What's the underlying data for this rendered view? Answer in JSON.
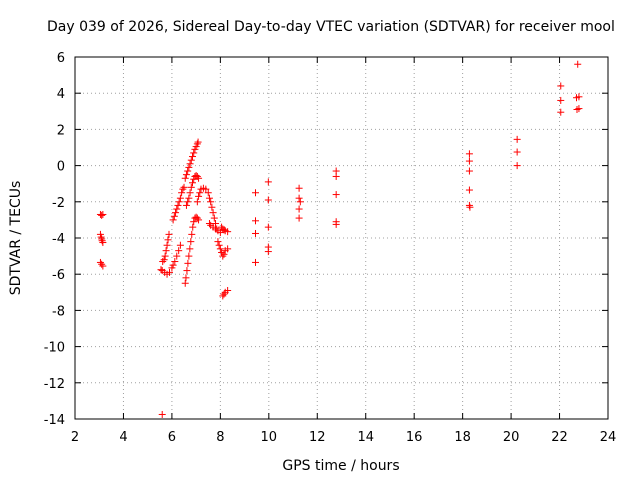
{
  "chart_data": {
    "type": "scatter",
    "title": "Day 039 of 2026, Sidereal Day-to-day VTEC variation (SDTVAR) for receiver mool",
    "xlabel": "GPS time / hours",
    "ylabel": "SDTVAR / TECUs",
    "xlim": [
      2,
      24
    ],
    "ylim": [
      -14,
      6
    ],
    "xticks": [
      2,
      4,
      6,
      8,
      10,
      12,
      14,
      16,
      18,
      20,
      22,
      24
    ],
    "yticks": [
      -14,
      -12,
      -10,
      -8,
      -6,
      -4,
      -2,
      0,
      2,
      4,
      6
    ],
    "grid": true,
    "marker": "+",
    "color": "#ff0000",
    "series": [
      {
        "name": "SDTVAR",
        "points": [
          [
            3.05,
            -2.7
          ],
          [
            3.1,
            -2.75
          ],
          [
            3.15,
            -2.7
          ],
          [
            3.05,
            -3.8
          ],
          [
            3.08,
            -3.95
          ],
          [
            3.1,
            -4.05
          ],
          [
            3.12,
            -4.15
          ],
          [
            3.15,
            -4.25
          ],
          [
            3.05,
            -5.35
          ],
          [
            3.1,
            -5.45
          ],
          [
            3.15,
            -5.55
          ],
          [
            5.6,
            -13.75
          ],
          [
            5.62,
            -5.3
          ],
          [
            5.68,
            -5.2
          ],
          [
            5.72,
            -5.0
          ],
          [
            5.76,
            -4.7
          ],
          [
            5.8,
            -4.4
          ],
          [
            5.84,
            -4.1
          ],
          [
            5.88,
            -3.8
          ],
          [
            5.55,
            -5.75
          ],
          [
            5.6,
            -5.8
          ],
          [
            5.7,
            -5.9
          ],
          [
            5.8,
            -6.0
          ],
          [
            5.9,
            -5.9
          ],
          [
            6.0,
            -5.65
          ],
          [
            6.05,
            -5.5
          ],
          [
            6.12,
            -5.3
          ],
          [
            6.2,
            -5.0
          ],
          [
            6.28,
            -4.7
          ],
          [
            6.35,
            -4.4
          ],
          [
            6.05,
            -3.0
          ],
          [
            6.1,
            -2.8
          ],
          [
            6.15,
            -2.6
          ],
          [
            6.2,
            -2.4
          ],
          [
            6.25,
            -2.2
          ],
          [
            6.3,
            -2.0
          ],
          [
            6.35,
            -1.8
          ],
          [
            6.4,
            -1.5
          ],
          [
            6.45,
            -1.3
          ],
          [
            6.5,
            -1.2
          ],
          [
            6.55,
            -6.5
          ],
          [
            6.58,
            -6.2
          ],
          [
            6.62,
            -5.8
          ],
          [
            6.66,
            -5.4
          ],
          [
            6.7,
            -5.0
          ],
          [
            6.74,
            -4.6
          ],
          [
            6.78,
            -4.2
          ],
          [
            6.82,
            -3.8
          ],
          [
            6.86,
            -3.4
          ],
          [
            6.9,
            -3.1
          ],
          [
            6.95,
            -2.9
          ],
          [
            7.0,
            -2.85
          ],
          [
            7.05,
            -2.9
          ],
          [
            7.1,
            -3.0
          ],
          [
            6.55,
            -0.7
          ],
          [
            6.6,
            -0.5
          ],
          [
            6.65,
            -0.3
          ],
          [
            6.7,
            -0.1
          ],
          [
            6.75,
            0.1
          ],
          [
            6.8,
            0.3
          ],
          [
            6.85,
            0.5
          ],
          [
            6.9,
            0.7
          ],
          [
            6.95,
            0.9
          ],
          [
            7.0,
            1.05
          ],
          [
            7.05,
            1.2
          ],
          [
            7.08,
            1.3
          ],
          [
            6.6,
            -2.2
          ],
          [
            6.65,
            -2.0
          ],
          [
            6.7,
            -1.8
          ],
          [
            6.75,
            -1.5
          ],
          [
            6.8,
            -1.2
          ],
          [
            6.85,
            -0.95
          ],
          [
            6.9,
            -0.75
          ],
          [
            6.95,
            -0.6
          ],
          [
            7.0,
            -0.55
          ],
          [
            7.05,
            -0.6
          ],
          [
            7.1,
            -0.7
          ],
          [
            7.05,
            -2.0
          ],
          [
            7.1,
            -1.7
          ],
          [
            7.15,
            -1.5
          ],
          [
            7.2,
            -1.3
          ],
          [
            7.3,
            -1.25
          ],
          [
            7.4,
            -1.3
          ],
          [
            7.5,
            -1.5
          ],
          [
            7.55,
            -1.8
          ],
          [
            7.6,
            -2.0
          ],
          [
            7.65,
            -2.3
          ],
          [
            7.7,
            -2.6
          ],
          [
            7.75,
            -2.9
          ],
          [
            7.8,
            -3.2
          ],
          [
            7.85,
            -3.5
          ],
          [
            7.55,
            -3.2
          ],
          [
            7.6,
            -3.3
          ],
          [
            7.7,
            -3.4
          ],
          [
            7.8,
            -3.5
          ],
          [
            7.9,
            -3.6
          ],
          [
            8.0,
            -3.7
          ],
          [
            7.9,
            -4.2
          ],
          [
            7.95,
            -4.4
          ],
          [
            8.0,
            -4.6
          ],
          [
            8.05,
            -4.8
          ],
          [
            8.1,
            -5.0
          ],
          [
            8.15,
            -4.9
          ],
          [
            8.2,
            -4.7
          ],
          [
            8.3,
            -4.6
          ],
          [
            8.05,
            -3.4
          ],
          [
            8.1,
            -3.5
          ],
          [
            8.15,
            -3.55
          ],
          [
            8.2,
            -3.6
          ],
          [
            8.3,
            -3.65
          ],
          [
            8.1,
            -7.2
          ],
          [
            8.15,
            -7.1
          ],
          [
            8.2,
            -7.0
          ],
          [
            8.3,
            -6.9
          ],
          [
            9.45,
            -1.5
          ],
          [
            9.45,
            -3.05
          ],
          [
            9.45,
            -3.75
          ],
          [
            9.45,
            -5.35
          ],
          [
            9.98,
            -0.9
          ],
          [
            9.98,
            -1.9
          ],
          [
            9.98,
            -3.4
          ],
          [
            9.98,
            -4.5
          ],
          [
            9.98,
            -4.75
          ],
          [
            11.25,
            -1.25
          ],
          [
            11.25,
            -1.8
          ],
          [
            11.3,
            -2.0
          ],
          [
            11.25,
            -2.4
          ],
          [
            11.25,
            -2.9
          ],
          [
            12.78,
            -0.3
          ],
          [
            12.78,
            -0.6
          ],
          [
            12.78,
            -1.6
          ],
          [
            12.78,
            -3.1
          ],
          [
            12.78,
            -3.25
          ],
          [
            18.28,
            0.65
          ],
          [
            18.28,
            0.25
          ],
          [
            18.28,
            -0.3
          ],
          [
            18.28,
            -1.35
          ],
          [
            18.28,
            -2.2
          ],
          [
            18.3,
            -2.3
          ],
          [
            20.25,
            1.45
          ],
          [
            20.25,
            0.75
          ],
          [
            20.25,
            0.0
          ],
          [
            22.05,
            4.4
          ],
          [
            22.05,
            3.6
          ],
          [
            22.05,
            2.95
          ],
          [
            22.75,
            5.6
          ],
          [
            22.7,
            3.75
          ],
          [
            22.8,
            3.8
          ],
          [
            22.72,
            3.1
          ],
          [
            22.8,
            3.15
          ]
        ]
      }
    ]
  }
}
